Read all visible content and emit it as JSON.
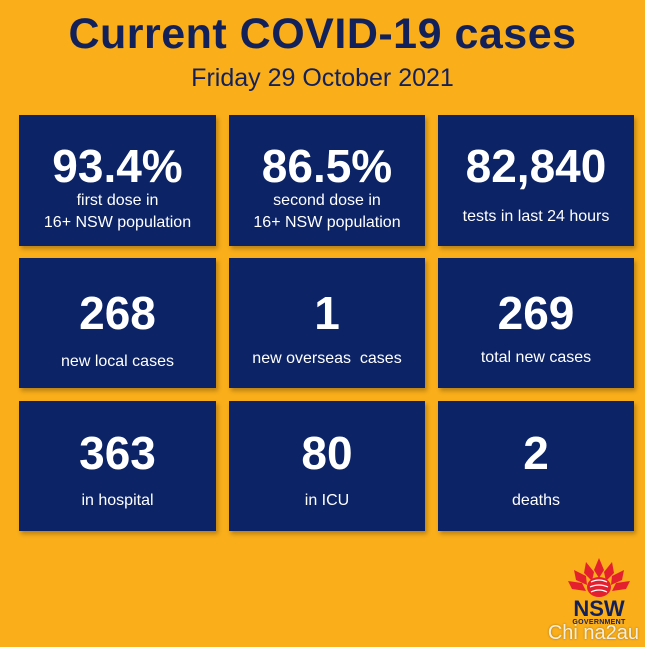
{
  "header": {
    "title": "Current COVID-19 cases",
    "date": "Friday 29 October 2021"
  },
  "cards": [
    {
      "value": "93.4%",
      "line1": "first dose in",
      "line2": "16+ NSW population"
    },
    {
      "value": "86.5%",
      "line1": "second dose in",
      "line2": "16+ NSW population"
    },
    {
      "value": "82,840",
      "label": "tests in last 24 hours"
    },
    {
      "value": "268",
      "label": "new local cases"
    },
    {
      "value": "1",
      "label": "new overseas  cases"
    },
    {
      "value": "269",
      "label": "total new cases"
    },
    {
      "value": "363",
      "label": "in hospital"
    },
    {
      "value": "80",
      "label": "in ICU"
    },
    {
      "value": "2",
      "label": "deaths"
    }
  ],
  "logo": {
    "name": "NSW",
    "sub": "GOVERNMENT",
    "icon": "waratah-flower-icon",
    "color": "#e4202e"
  },
  "watermark": "Chi na2au",
  "colors": {
    "background": "#f9ae1a",
    "card": "#0c2366",
    "heading": "#13215b"
  }
}
